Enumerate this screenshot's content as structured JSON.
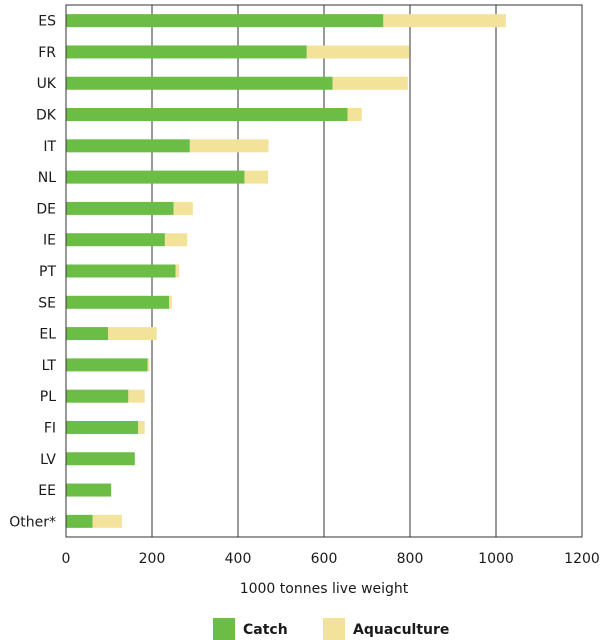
{
  "chart_data": {
    "type": "bar",
    "orientation": "horizontal",
    "stacked": true,
    "categories": [
      "ES",
      "FR",
      "UK",
      "DK",
      "IT",
      "NL",
      "DE",
      "IE",
      "PT",
      "SE",
      "EL",
      "LT",
      "PL",
      "FI",
      "LV",
      "EE",
      "Other*"
    ],
    "series": [
      {
        "name": "Catch",
        "color": "#6bbd45",
        "values": [
          738,
          560,
          620,
          655,
          288,
          415,
          250,
          230,
          255,
          240,
          98,
          190,
          145,
          168,
          160,
          105,
          62
        ]
      },
      {
        "name": "Aquaculture",
        "color": "#f3e39a",
        "values": [
          285,
          238,
          175,
          33,
          183,
          55,
          45,
          52,
          8,
          6,
          113,
          4,
          38,
          15,
          0,
          0,
          68
        ]
      }
    ],
    "xlabel": "1000 tonnes live weight",
    "ylabel": "",
    "title": "",
    "xlim": [
      0,
      1200
    ],
    "xticks": [
      0,
      200,
      400,
      600,
      800,
      1000,
      1200
    ],
    "grid": "vertical",
    "legend": "bottom-center"
  }
}
